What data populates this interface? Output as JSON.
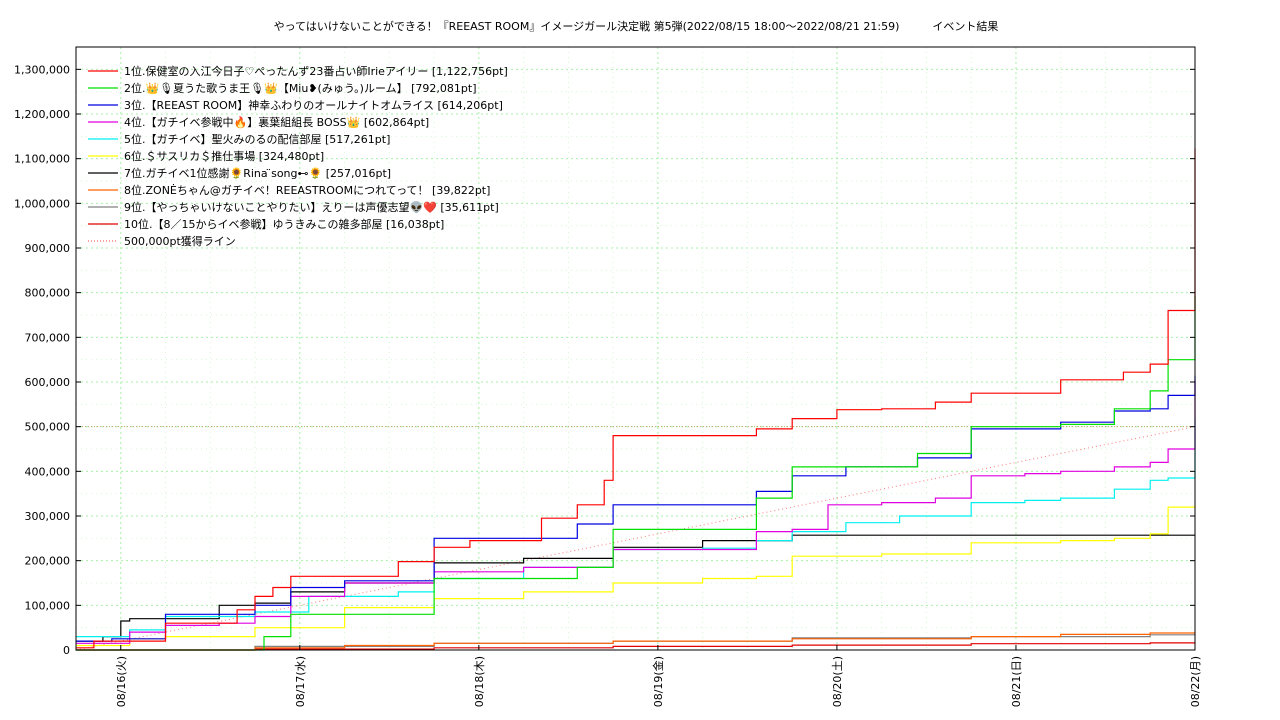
{
  "chart_data": {
    "type": "line",
    "title": "やってはいけないことができる！『REEAST ROOM』イメージガール決定戦 第5弾(2022/08/15 18:00～2022/08/21 21:59)　　　イベント結果",
    "ylim": [
      0,
      1350000
    ],
    "xlim": [
      0,
      6.25
    ],
    "y_ticks": [
      0,
      100000,
      200000,
      300000,
      400000,
      500000,
      600000,
      700000,
      800000,
      900000,
      1000000,
      1100000,
      1200000,
      1300000
    ],
    "y_tick_labels": [
      "0",
      "100,000",
      "200,000",
      "300,000",
      "400,000",
      "500,000",
      "600,000",
      "700,000",
      "800,000",
      "900,000",
      "1,000,000",
      "1,100,000",
      "1,200,000",
      "1,300,000"
    ],
    "x_ticks": [
      0.25,
      1.25,
      2.25,
      3.25,
      4.25,
      5.25,
      6.25
    ],
    "x_tick_labels": [
      "08/16(火)",
      "08/17(水)",
      "08/18(木)",
      "08/19(金)",
      "08/20(土)",
      "08/21(日)",
      "08/22(月)"
    ],
    "grid": true,
    "legend_position": "top-left",
    "threshold": {
      "name": "500,000pt獲得ライン",
      "value": 500000,
      "color": "#ff4040"
    },
    "series": [
      {
        "name": "1位.保健室の入江今日子♡ぺったんず23番占い師Irieアイリー [1,122,756pt]",
        "color": "#ff0000",
        "x": [
          0,
          0.1,
          0.5,
          0.9,
          1.0,
          1.1,
          1.2,
          1.6,
          1.8,
          2.0,
          2.2,
          2.6,
          2.8,
          2.95,
          3.0,
          3.5,
          3.8,
          4.0,
          4.25,
          4.5,
          4.8,
          5.0,
          5.5,
          5.75,
          5.85,
          6.0,
          6.1,
          6.25
        ],
        "y": [
          5000,
          20000,
          60000,
          90000,
          120000,
          140000,
          165000,
          165000,
          198000,
          230000,
          245000,
          295000,
          325000,
          380000,
          480000,
          480000,
          495000,
          518000,
          538000,
          540000,
          555000,
          575000,
          605000,
          605000,
          622000,
          640000,
          760000,
          1122756
        ]
      },
      {
        "name": "2位.👑🎙夏うた歌うま王🎙👑【Miu❥(みゅう。)ルーム】 [792,081pt]",
        "color": "#00e000",
        "x": [
          0,
          0.5,
          1.0,
          1.05,
          1.2,
          1.5,
          2.0,
          2.5,
          2.8,
          3.0,
          3.5,
          3.8,
          4.0,
          4.3,
          4.7,
          5.0,
          5.3,
          5.5,
          5.8,
          6.0,
          6.1,
          6.25
        ],
        "y": [
          0,
          0,
          0,
          30000,
          80000,
          80000,
          160000,
          160000,
          185000,
          270000,
          270000,
          340000,
          410000,
          410000,
          440000,
          500000,
          500000,
          505000,
          540000,
          580000,
          650000,
          792081
        ]
      },
      {
        "name": "3位.【REEAST ROOM】神幸ふわりのオールナイトオムライス [614,206pt]",
        "color": "#0000e0",
        "x": [
          0,
          0.2,
          0.5,
          0.7,
          1.0,
          1.2,
          1.5,
          2.0,
          2.5,
          2.8,
          3.0,
          3.5,
          3.8,
          4.0,
          4.3,
          4.7,
          5.0,
          5.3,
          5.5,
          5.8,
          6.0,
          6.1,
          6.25
        ],
        "y": [
          20000,
          25000,
          80000,
          80000,
          100000,
          140000,
          155000,
          250000,
          250000,
          282000,
          325000,
          325000,
          355000,
          390000,
          410000,
          430000,
          495000,
          495000,
          510000,
          535000,
          540000,
          570000,
          614206
        ]
      },
      {
        "name": "4位.【ガチイベ参戦中🔥】裏葉組組長 BOSS👑 [602,864pt]",
        "color": "#e000e0",
        "x": [
          0,
          0.3,
          0.5,
          0.8,
          1.0,
          1.2,
          1.5,
          2.0,
          2.5,
          3.0,
          3.5,
          3.8,
          4.0,
          4.2,
          4.5,
          4.8,
          5.0,
          5.3,
          5.5,
          5.8,
          6.0,
          6.1,
          6.25
        ],
        "y": [
          15000,
          40000,
          55000,
          60000,
          75000,
          120000,
          150000,
          175000,
          185000,
          225000,
          225000,
          265000,
          270000,
          325000,
          330000,
          340000,
          390000,
          395000,
          400000,
          410000,
          420000,
          450000,
          602864
        ]
      },
      {
        "name": "5位.【ガチイベ】聖火みのるの配信部屋 [517,261pt]",
        "color": "#00f0f0",
        "x": [
          0,
          0.3,
          0.5,
          0.9,
          1.0,
          1.3,
          1.8,
          2.0,
          2.5,
          3.0,
          3.5,
          3.8,
          4.0,
          4.3,
          4.6,
          5.0,
          5.3,
          5.5,
          5.8,
          6.0,
          6.1,
          6.25
        ],
        "y": [
          30000,
          45000,
          75000,
          75000,
          85000,
          120000,
          130000,
          160000,
          185000,
          225000,
          228000,
          245000,
          265000,
          285000,
          300000,
          330000,
          335000,
          340000,
          360000,
          380000,
          385000,
          517261
        ]
      },
      {
        "name": "6位.＄サスリカ＄推仕事場 [324,480pt]",
        "color": "#ffff00",
        "x": [
          0,
          0.3,
          0.5,
          1.0,
          1.5,
          2.0,
          2.5,
          3.0,
          3.5,
          3.8,
          4.0,
          4.5,
          5.0,
          5.5,
          5.8,
          6.0,
          6.1,
          6.25
        ],
        "y": [
          10000,
          25000,
          30000,
          50000,
          95000,
          115000,
          130000,
          150000,
          160000,
          165000,
          210000,
          215000,
          240000,
          245000,
          250000,
          260000,
          320000,
          324480
        ]
      },
      {
        "name": "7位.ガチイベ1位感謝🌻Rina ̈song⊷🌻 [257,016pt]",
        "color": "#000000",
        "x": [
          0,
          0.15,
          0.25,
          0.3,
          0.8,
          1.0,
          1.2,
          1.5,
          2.0,
          2.5,
          3.0,
          3.5,
          4.0,
          6.25
        ],
        "y": [
          20000,
          30000,
          65000,
          70000,
          100000,
          105000,
          130000,
          150000,
          195000,
          205000,
          230000,
          245000,
          257016,
          257016
        ]
      },
      {
        "name": "8位.ZONĖちゃん@ガチイベ！REEASTROOMにつれてって！ [39,822pt]",
        "color": "#ff6000",
        "x": [
          0,
          1.0,
          1.5,
          2.0,
          3.0,
          4.0,
          5.0,
          5.5,
          6.0,
          6.25
        ],
        "y": [
          0,
          5000,
          10000,
          15000,
          20000,
          25000,
          30000,
          35000,
          38000,
          39822
        ]
      },
      {
        "name": "9位.【やっちゃいけないことやりたい】えりーは声優志望👽❤️ [35,611pt]",
        "color": "#808080",
        "x": [
          0,
          1.0,
          2.0,
          3.0,
          4.0,
          5.0,
          6.0,
          6.25
        ],
        "y": [
          0,
          8000,
          15000,
          20000,
          27000,
          30000,
          34000,
          35611
        ]
      },
      {
        "name": "10位.【8／15からイベ参戦】ゆうきみこの雑多部屋 [16,038pt]",
        "color": "#e00000",
        "x": [
          0,
          1.0,
          2.0,
          3.0,
          4.0,
          5.0,
          6.0,
          6.25
        ],
        "y": [
          0,
          2000,
          5000,
          8000,
          11000,
          14000,
          16000,
          16038
        ]
      }
    ]
  }
}
